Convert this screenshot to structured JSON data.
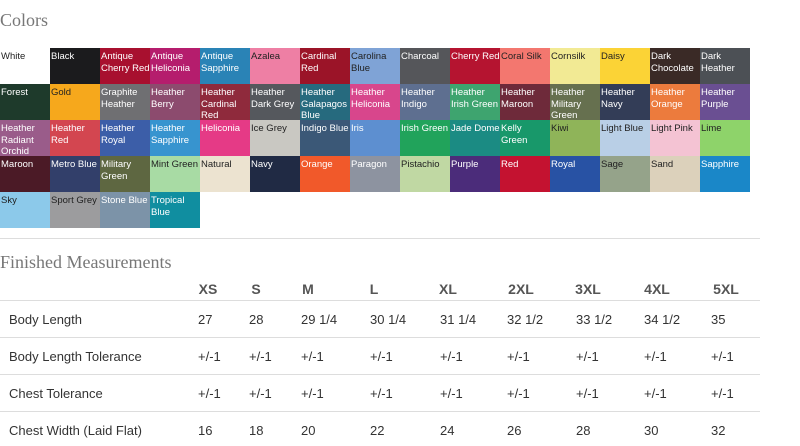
{
  "colors": {
    "title": "Colors",
    "swatches": [
      {
        "name": "White",
        "color": "#ffffff"
      },
      {
        "name": "Black",
        "color": "#1b1b1d"
      },
      {
        "name": "Antique Cherry Red",
        "color": "#a8102f"
      },
      {
        "name": "Antique Heliconia",
        "color": "#b51d6d"
      },
      {
        "name": "Antique Sapphire",
        "color": "#2a83b6"
      },
      {
        "name": "Azalea",
        "color": "#ee7fa4"
      },
      {
        "name": "Cardinal Red",
        "color": "#9b1428"
      },
      {
        "name": "Carolina Blue",
        "color": "#7fa3d6"
      },
      {
        "name": "Charcoal",
        "color": "#55565a"
      },
      {
        "name": "Cherry Red",
        "color": "#b51430"
      },
      {
        "name": "Coral Silk",
        "color": "#f3776f"
      },
      {
        "name": "Cornsilk",
        "color": "#f2ea94"
      },
      {
        "name": "Daisy",
        "color": "#fbd336"
      },
      {
        "name": "Dark Chocolate",
        "color": "#3a2a26"
      },
      {
        "name": "Dark Heather",
        "color": "#4c5055"
      },
      {
        "name": "Forest",
        "color": "#1e3a2b"
      },
      {
        "name": "Gold",
        "color": "#f6a81c"
      },
      {
        "name": "Graphite Heather",
        "color": "#6f6f72"
      },
      {
        "name": "Heather Berry",
        "color": "#8c4b6e"
      },
      {
        "name": "Heather Cardinal Red",
        "color": "#8f2a3c"
      },
      {
        "name": "Heather Dark Grey",
        "color": "#55585d"
      },
      {
        "name": "Heather Galapagos Blue",
        "color": "#266a7e"
      },
      {
        "name": "Heather Heliconia",
        "color": "#d8468c"
      },
      {
        "name": "Heather Indigo",
        "color": "#5e6f90"
      },
      {
        "name": "Heather Irish Green",
        "color": "#3ea46f"
      },
      {
        "name": "Heather Maroon",
        "color": "#6e2a3a"
      },
      {
        "name": "Heather Military Green",
        "color": "#66704f"
      },
      {
        "name": "Heather Navy",
        "color": "#333d57"
      },
      {
        "name": "Heather Orange",
        "color": "#ec7b3d"
      },
      {
        "name": "Heather Purple",
        "color": "#6a4f92"
      },
      {
        "name": "Heather Radiant Orchid",
        "color": "#9a5c8a"
      },
      {
        "name": "Heather Red",
        "color": "#d34650"
      },
      {
        "name": "Heather Royal",
        "color": "#3c5ea8"
      },
      {
        "name": "Heather Sapphire",
        "color": "#3794cf"
      },
      {
        "name": "Heliconia",
        "color": "#e53a86"
      },
      {
        "name": "Ice Grey",
        "color": "#c9c8c2"
      },
      {
        "name": "Indigo Blue",
        "color": "#3b5877"
      },
      {
        "name": "Iris",
        "color": "#5d8fd0"
      },
      {
        "name": "Irish Green",
        "color": "#21a35b"
      },
      {
        "name": "Jade Dome",
        "color": "#1b8b83"
      },
      {
        "name": "Kelly Green",
        "color": "#18986a"
      },
      {
        "name": "Kiwi",
        "color": "#8fb459"
      },
      {
        "name": "Light Blue",
        "color": "#b9cfe6"
      },
      {
        "name": "Light Pink",
        "color": "#f4c3d3"
      },
      {
        "name": "Lime",
        "color": "#8ed36a"
      },
      {
        "name": "Maroon",
        "color": "#4b1a26"
      },
      {
        "name": "Metro Blue",
        "color": "#323f6a"
      },
      {
        "name": "Military Green",
        "color": "#5e6741"
      },
      {
        "name": "Mint Green",
        "color": "#a8dba4"
      },
      {
        "name": "Natural",
        "color": "#ece3d0"
      },
      {
        "name": "Navy",
        "color": "#202a44"
      },
      {
        "name": "Orange",
        "color": "#f1592a"
      },
      {
        "name": "Paragon",
        "color": "#8d93a0"
      },
      {
        "name": "Pistachio",
        "color": "#c0d8a3"
      },
      {
        "name": "Purple",
        "color": "#4b2c7a"
      },
      {
        "name": "Red",
        "color": "#c41230"
      },
      {
        "name": "Royal",
        "color": "#2852a4"
      },
      {
        "name": "Sage",
        "color": "#95a38a"
      },
      {
        "name": "Sand",
        "color": "#dcd1bb"
      },
      {
        "name": "Sapphire",
        "color": "#1a87c8"
      },
      {
        "name": "Sky",
        "color": "#8cc9ea"
      },
      {
        "name": "Sport Grey",
        "color": "#9c9c9e"
      },
      {
        "name": "Stone Blue",
        "color": "#7c93a8"
      },
      {
        "name": "Tropical Blue",
        "color": "#108ea0"
      }
    ]
  },
  "measurements": {
    "title": "Finished Measurements",
    "sizes": [
      "XS",
      "S",
      "M",
      "L",
      "XL",
      "2XL",
      "3XL",
      "4XL",
      "5XL"
    ],
    "rows": [
      {
        "label": "Body Length",
        "values": [
          "27",
          "28",
          "29 1/4",
          "30 1/4",
          "31 1/4",
          "32 1/2",
          "33 1/2",
          "34 1/2",
          "35"
        ]
      },
      {
        "label": "Body Length Tolerance",
        "values": [
          "+/-1",
          "+/-1",
          "+/-1",
          "+/-1",
          "+/-1",
          "+/-1",
          "+/-1",
          "+/-1",
          "+/-1"
        ]
      },
      {
        "label": "Chest Tolerance",
        "values": [
          "+/-1",
          "+/-1",
          "+/-1",
          "+/-1",
          "+/-1",
          "+/-1",
          "+/-1",
          "+/-1",
          "+/-1"
        ]
      },
      {
        "label": "Chest Width (Laid Flat)",
        "values": [
          "16",
          "18",
          "20",
          "22",
          "24",
          "26",
          "28",
          "30",
          "32"
        ]
      }
    ]
  }
}
